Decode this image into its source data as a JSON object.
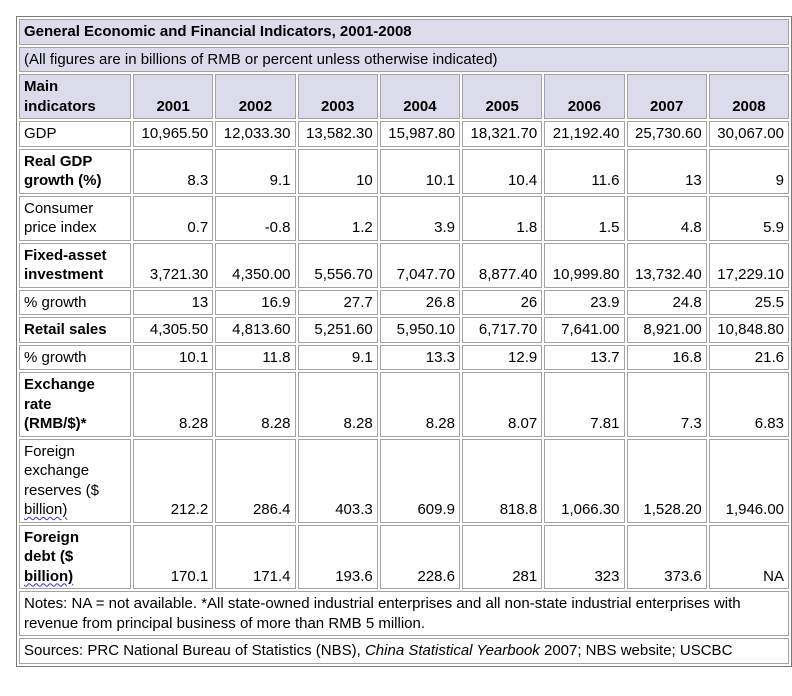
{
  "title": "General Economic and Financial Indicators, 2001-2008",
  "subtitle": "(All figures are in billions of RMB or percent unless otherwise indicated)",
  "colors": {
    "header_bg": "#dbdbeb",
    "cell_border": "#a3a3a3",
    "outer_border": "#7b7b7b",
    "spellcheck_underline": "#3333cc"
  },
  "table": {
    "header": {
      "label": "Main indicators",
      "label_lines": [
        "Main",
        "indicators"
      ],
      "years": [
        "2001",
        "2002",
        "2003",
        "2004",
        "2005",
        "2006",
        "2007",
        "2008"
      ]
    },
    "rows": [
      {
        "label": "GDP",
        "lines": [
          "GDP"
        ],
        "bold": false,
        "values": [
          "10,965.50",
          "12,033.30",
          "13,582.30",
          "15,987.80",
          "18,321.70",
          "21,192.40",
          "25,730.60",
          "30,067.00"
        ]
      },
      {
        "label": "Real GDP growth (%)",
        "lines": [
          "Real GDP",
          "growth (%)"
        ],
        "bold": true,
        "values": [
          "8.3",
          "9.1",
          "10",
          "10.1",
          "10.4",
          "11.6",
          "13",
          "9"
        ]
      },
      {
        "label": "Consumer price index",
        "lines": [
          "Consumer",
          "price index"
        ],
        "bold": false,
        "values": [
          "0.7",
          "-0.8",
          "1.2",
          "3.9",
          "1.8",
          "1.5",
          "4.8",
          "5.9"
        ]
      },
      {
        "label": "Fixed-asset investment",
        "lines": [
          "Fixed-asset",
          "investment"
        ],
        "bold": true,
        "values": [
          "3,721.30",
          "4,350.00",
          "5,556.70",
          "7,047.70",
          "8,877.40",
          "10,999.80",
          "13,732.40",
          "17,229.10"
        ]
      },
      {
        "label": "% growth",
        "lines": [
          "% growth"
        ],
        "bold": false,
        "values": [
          "13",
          "16.9",
          "27.7",
          "26.8",
          "26",
          "23.9",
          "24.8",
          "25.5"
        ]
      },
      {
        "label": "Retail sales",
        "lines": [
          "Retail sales"
        ],
        "bold": true,
        "values": [
          "4,305.50",
          "4,813.60",
          "5,251.60",
          "5,950.10",
          "6,717.70",
          "7,641.00",
          "8,921.00",
          "10,848.80"
        ]
      },
      {
        "label": "% growth",
        "lines": [
          "% growth"
        ],
        "bold": false,
        "values": [
          "10.1",
          "11.8",
          "9.1",
          "13.3",
          "12.9",
          "13.7",
          "16.8",
          "21.6"
        ]
      },
      {
        "label": "Exchange rate (RMB/$)*",
        "lines": [
          "Exchange",
          "rate",
          "(RMB/$)*"
        ],
        "bold": true,
        "values": [
          "8.28",
          "8.28",
          "8.28",
          "8.28",
          "8.07",
          "7.81",
          "7.3",
          "6.83"
        ]
      },
      {
        "label": "Foreign exchange reserves ($ billion)",
        "lines": [
          "Foreign",
          "exchange",
          "reserves ($",
          "billion)"
        ],
        "bold": false,
        "wavy": "billion)",
        "values": [
          "212.2",
          "286.4",
          "403.3",
          "609.9",
          "818.8",
          "1,066.30",
          "1,528.20",
          "1,946.00"
        ]
      },
      {
        "label": "Foreign debt ($ billion)",
        "lines": [
          "Foreign",
          "debt ($",
          "billion)"
        ],
        "bold": true,
        "wavy": "billion)",
        "values": [
          "170.1",
          "171.4",
          "193.6",
          "228.6",
          "281",
          "323",
          "373.6",
          "NA"
        ]
      }
    ]
  },
  "notes": "Notes: NA = not available. *All state-owned industrial enterprises and all non-state industrial enterprises with revenue from principal business of more than RMB 5 million.",
  "sources": {
    "parts": [
      {
        "text": "Sources: PRC National Bureau of Statistics (NBS), ",
        "italic": false
      },
      {
        "text": "China Statistical Yearbook",
        "italic": true
      },
      {
        "text": " 2007; NBS website; USCBC",
        "italic": false
      }
    ]
  }
}
